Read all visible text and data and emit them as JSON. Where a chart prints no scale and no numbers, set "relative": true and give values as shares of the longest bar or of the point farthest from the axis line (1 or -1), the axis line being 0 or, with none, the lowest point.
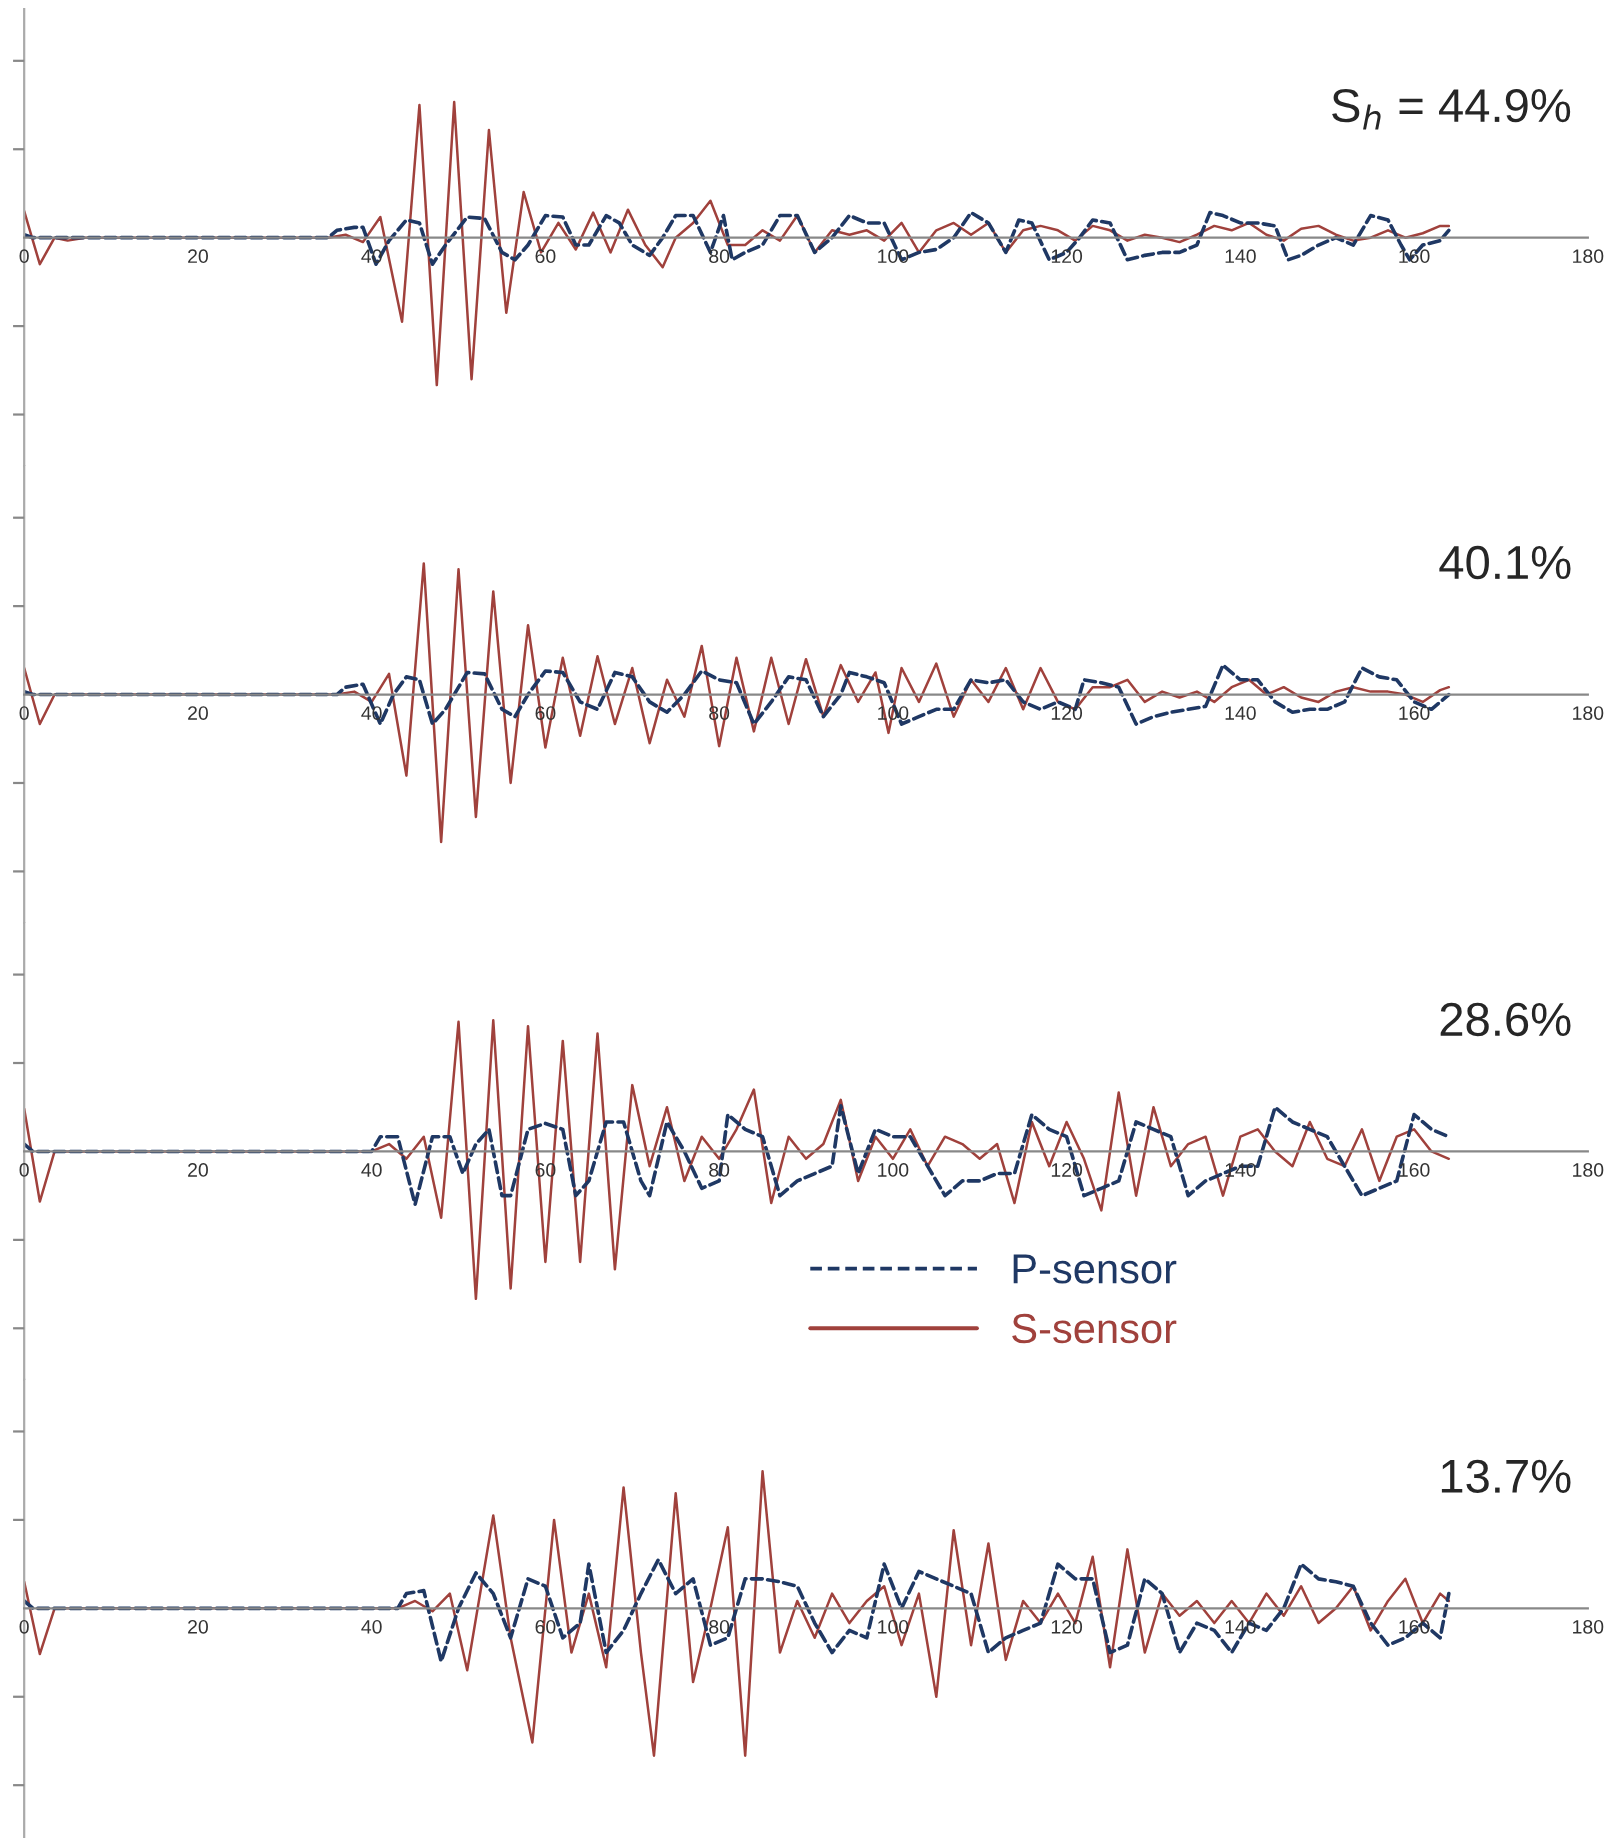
{
  "chart_data": [
    {
      "type": "line",
      "relative": true,
      "xlim": [
        0,
        180
      ],
      "xticks": [
        0,
        20,
        40,
        60,
        80,
        100,
        120,
        140,
        160,
        180
      ],
      "tick_labels": "x",
      "annotations": [
        "S$_{h}$ = 44.9%"
      ],
      "series": [
        {
          "color": "#1f3864",
          "line_style": "dashed",
          "x": [
            0,
            1,
            35,
            36,
            38,
            39,
            40.5,
            42,
            44,
            45.5,
            47,
            48.5,
            51,
            53,
            55,
            56.5,
            58,
            60,
            62,
            63.5,
            65,
            67,
            68.5,
            70,
            72,
            73.5,
            75,
            77,
            79,
            80.5,
            81.5,
            83,
            85,
            87,
            89,
            91,
            93,
            95,
            97,
            99,
            101,
            103,
            105,
            107,
            109,
            111,
            113,
            114.5,
            116,
            118,
            120,
            121.5,
            123,
            125,
            127,
            129,
            131,
            133,
            135,
            136.5,
            138,
            140,
            142,
            144,
            145.5,
            147,
            149,
            151,
            153,
            155,
            157,
            158.5,
            159.5,
            161,
            163,
            164
          ],
          "values": [
            0.02,
            0,
            0,
            0.05,
            0.07,
            0.07,
            -0.18,
            -0.02,
            0.12,
            0.1,
            -0.18,
            -0.05,
            0.14,
            0.13,
            -0.1,
            -0.15,
            -0.05,
            0.15,
            0.14,
            -0.05,
            -0.05,
            0.15,
            0.1,
            -0.05,
            -0.12,
            0,
            0.15,
            0.15,
            -0.1,
            0.15,
            -0.15,
            -0.1,
            -0.05,
            0.15,
            0.15,
            -0.1,
            0,
            0.15,
            0.1,
            0.1,
            -0.15,
            -0.1,
            -0.08,
            0,
            0.17,
            0.1,
            -0.1,
            0.12,
            0.1,
            -0.15,
            -0.1,
            0,
            0.12,
            0.1,
            -0.15,
            -0.12,
            -0.1,
            -0.1,
            -0.05,
            0.17,
            0.15,
            0.1,
            0.1,
            0.08,
            -0.15,
            -0.12,
            -0.05,
            0,
            -0.05,
            0.15,
            0.12,
            -0.05,
            -0.15,
            -0.05,
            -0.02,
            0.05
          ]
        },
        {
          "color": "#a0413c",
          "line_style": "solid",
          "x": [
            0,
            1.8,
            3.5,
            5,
            7,
            35,
            37,
            39,
            41,
            43.5,
            45.5,
            47.5,
            49.5,
            51.5,
            53.5,
            55.5,
            57.5,
            59.5,
            61.5,
            63.5,
            65.5,
            67.5,
            69.5,
            71.5,
            73.5,
            75,
            77,
            79,
            81,
            83,
            85,
            87,
            89,
            91,
            93,
            95,
            97,
            99,
            101,
            103,
            105,
            107,
            109,
            111,
            113,
            115,
            117,
            119,
            121,
            123,
            125,
            127,
            129,
            131,
            133,
            135,
            137,
            139,
            141,
            143,
            145,
            147,
            149,
            151,
            153,
            155,
            157,
            159,
            161,
            163,
            164
          ],
          "values": [
            0.18,
            -0.18,
            0,
            -0.02,
            0,
            0,
            0.02,
            -0.03,
            0.14,
            -0.57,
            0.9,
            -1,
            0.92,
            -0.96,
            0.73,
            -0.51,
            0.31,
            -0.1,
            0.1,
            -0.08,
            0.17,
            -0.1,
            0.19,
            -0.05,
            -0.2,
            0,
            0.1,
            0.25,
            -0.05,
            -0.05,
            0.05,
            -0.02,
            0.15,
            -0.1,
            0.05,
            0.02,
            0.05,
            -0.02,
            0.1,
            -0.1,
            0.05,
            0.1,
            0.02,
            0.1,
            -0.1,
            0.05,
            0.08,
            0.05,
            -0.02,
            0.08,
            0.05,
            -0.02,
            0.02,
            0,
            -0.03,
            0.02,
            0.08,
            0.05,
            0.1,
            0.02,
            -0.02,
            0.06,
            0.08,
            0.02,
            -0.02,
            0,
            0.05,
            0,
            0.03,
            0.08,
            0.08
          ]
        }
      ]
    },
    {
      "type": "line",
      "relative": true,
      "xlim": [
        0,
        180
      ],
      "xticks": [
        0,
        20,
        40,
        60,
        80,
        100,
        120,
        140,
        160,
        180
      ],
      "tick_labels": "x",
      "annotations": [
        "40.1%"
      ],
      "series": [
        {
          "color": "#1f3864",
          "line_style": "dashed",
          "x": [
            0,
            1,
            36,
            37,
            39,
            41,
            42.5,
            44,
            45.5,
            47,
            48.5,
            51,
            53,
            55,
            56.5,
            58,
            60,
            62,
            64,
            66,
            68,
            70,
            72,
            74,
            76,
            78,
            80,
            82,
            84,
            86,
            88,
            90,
            92,
            94,
            95,
            97,
            99,
            101,
            103,
            105,
            107,
            109,
            111,
            113,
            115,
            117,
            119,
            121,
            122,
            124,
            126,
            128,
            130,
            132,
            134,
            136,
            138,
            140,
            142,
            144,
            146,
            148,
            150,
            152,
            154,
            156,
            158,
            160,
            162,
            164
          ],
          "values": [
            0.02,
            0,
            0,
            0.05,
            0.07,
            -0.2,
            0,
            0.12,
            0.1,
            -0.2,
            -0.1,
            0.15,
            0.14,
            -0.1,
            -0.15,
            0,
            0.16,
            0.15,
            -0.05,
            -0.1,
            0.15,
            0.12,
            -0.05,
            -0.12,
            0,
            0.16,
            0.1,
            0.08,
            -0.2,
            -0.05,
            0.12,
            0.1,
            -0.15,
            0,
            0.15,
            0.12,
            0.08,
            -0.2,
            -0.15,
            -0.1,
            -0.1,
            0.1,
            0.08,
            0.1,
            -0.05,
            -0.1,
            -0.05,
            -0.1,
            0.1,
            0.08,
            0.05,
            -0.2,
            -0.15,
            -0.12,
            -0.1,
            -0.08,
            0.2,
            0.1,
            0.1,
            -0.05,
            -0.12,
            -0.1,
            -0.1,
            -0.05,
            0.18,
            0.12,
            0.1,
            -0.05,
            -0.1,
            0
          ]
        },
        {
          "color": "#a0413c",
          "line_style": "solid",
          "x": [
            0,
            1.8,
            3.5,
            36,
            38,
            40,
            42,
            44,
            46,
            48,
            50,
            52,
            54,
            56,
            58,
            60,
            62,
            64,
            66,
            68,
            70,
            72,
            74,
            76,
            78,
            80,
            82,
            84,
            86,
            88,
            90,
            92,
            94,
            96,
            98,
            99.5,
            101,
            103,
            105,
            107,
            109,
            111,
            113,
            115,
            117,
            119,
            121,
            123,
            125,
            127,
            129,
            131,
            133,
            135,
            137,
            139,
            141,
            143,
            145,
            147,
            149,
            151,
            153,
            155,
            157,
            159,
            161,
            163,
            164
          ],
          "values": [
            0.18,
            -0.2,
            0,
            0,
            0.02,
            -0.05,
            0.14,
            -0.55,
            0.89,
            -1,
            0.85,
            -0.83,
            0.7,
            -0.6,
            0.47,
            -0.36,
            0.25,
            -0.28,
            0.26,
            -0.2,
            0.18,
            -0.33,
            0.1,
            -0.15,
            0.33,
            -0.35,
            0.25,
            -0.25,
            0.25,
            -0.2,
            0.24,
            -0.15,
            0.2,
            -0.05,
            0.15,
            -0.26,
            0.18,
            -0.05,
            0.21,
            -0.15,
            0.1,
            -0.05,
            0.18,
            -0.1,
            0.18,
            -0.05,
            -0.1,
            0.05,
            0.05,
            0.1,
            -0.05,
            0.02,
            -0.02,
            0.02,
            -0.05,
            0.05,
            0.1,
            0,
            0.05,
            -0.02,
            -0.05,
            0.02,
            0.05,
            0.02,
            0.02,
            0,
            -0.05,
            0.03,
            0.05
          ]
        }
      ]
    },
    {
      "type": "line",
      "relative": true,
      "xlim": [
        0,
        180
      ],
      "xticks": [
        0,
        20,
        40,
        60,
        80,
        100,
        120,
        140,
        160,
        180
      ],
      "tick_labels": "x",
      "legend": "bottom",
      "annotations": [
        "28.6%"
      ],
      "series": [
        {
          "name": "P-sensor",
          "color": "#1f3864",
          "line_style": "dashed",
          "x": [
            0,
            1,
            40,
            41,
            43,
            45,
            47,
            49,
            50.5,
            52,
            53.5,
            55,
            56,
            58,
            60,
            62,
            63.5,
            65,
            67,
            69,
            71,
            72,
            74,
            76,
            78,
            80,
            81,
            83,
            85,
            87,
            89,
            91,
            93,
            94,
            96,
            98,
            100,
            102,
            104,
            106,
            108,
            110,
            112,
            114,
            116,
            118,
            120,
            122,
            124,
            126,
            128,
            130,
            132,
            134,
            136,
            138,
            140,
            142,
            144,
            146,
            148,
            150,
            152,
            154,
            156,
            158,
            160,
            162,
            164
          ],
          "values": [
            0.05,
            0,
            0,
            0.1,
            0.1,
            -0.36,
            0.1,
            0.1,
            -0.15,
            0.05,
            0.15,
            -0.3,
            -0.3,
            0.15,
            0.19,
            0.15,
            -0.3,
            -0.2,
            0.2,
            0.2,
            -0.2,
            -0.3,
            0.2,
            0,
            -0.25,
            -0.2,
            0.25,
            0.15,
            0.1,
            -0.3,
            -0.2,
            -0.15,
            -0.1,
            0.31,
            -0.15,
            0.15,
            0.1,
            0.1,
            -0.1,
            -0.3,
            -0.2,
            -0.2,
            -0.15,
            -0.15,
            0.25,
            0.15,
            0.1,
            -0.3,
            -0.25,
            -0.2,
            0.2,
            0.15,
            0.1,
            -0.3,
            -0.2,
            -0.15,
            -0.1,
            -0.1,
            0.3,
            0.2,
            0.15,
            0.1,
            -0.1,
            -0.3,
            -0.25,
            -0.2,
            0.25,
            0.15,
            0.1
          ]
        },
        {
          "name": "S-sensor",
          "color": "#a0413c",
          "line_style": "solid",
          "x": [
            0,
            1.8,
            3.5,
            40,
            42,
            44,
            46,
            48,
            50,
            52,
            54,
            56,
            58,
            60,
            62,
            64,
            66,
            68,
            70,
            72,
            74,
            76,
            78,
            80,
            82,
            84,
            86,
            88,
            90,
            92,
            94,
            96,
            98,
            100,
            102,
            104,
            106,
            108,
            110,
            112,
            114,
            116,
            118,
            120,
            122,
            124,
            126,
            128,
            130,
            132,
            134,
            136,
            138,
            140,
            142,
            144,
            146,
            148,
            150,
            152,
            154,
            156,
            158,
            160,
            162,
            164
          ],
          "values": [
            0.29,
            -0.34,
            0,
            0,
            0.05,
            -0.05,
            0.1,
            -0.45,
            0.88,
            -1,
            0.89,
            -0.93,
            0.85,
            -0.75,
            0.75,
            -0.75,
            0.8,
            -0.8,
            0.45,
            -0.1,
            0.3,
            -0.2,
            0.1,
            -0.05,
            0.15,
            0.42,
            -0.35,
            0.1,
            -0.05,
            0.05,
            0.35,
            -0.2,
            0.1,
            -0.05,
            0.15,
            -0.1,
            0.1,
            0.05,
            -0.05,
            0.05,
            -0.35,
            0.2,
            -0.1,
            0.2,
            -0.05,
            -0.4,
            0.4,
            -0.3,
            0.3,
            -0.1,
            0.05,
            0.1,
            -0.3,
            0.1,
            0.15,
            0,
            -0.1,
            0.2,
            -0.05,
            -0.1,
            0.15,
            -0.2,
            0.1,
            0.15,
            0,
            -0.05
          ]
        }
      ]
    },
    {
      "type": "line",
      "relative": true,
      "xlim": [
        0,
        180
      ],
      "xticks": [
        0,
        20,
        40,
        60,
        80,
        100,
        120,
        140,
        160,
        180
      ],
      "tick_labels": "x",
      "annotations": [
        "13.7%"
      ],
      "series": [
        {
          "color": "#1f3864",
          "line_style": "dashed",
          "x": [
            0,
            1,
            43,
            44,
            46,
            48,
            50,
            52,
            54,
            56,
            58,
            60,
            62,
            64,
            65,
            67,
            69,
            71,
            73,
            75,
            77,
            79,
            81,
            83,
            85,
            87,
            89,
            91,
            93,
            95,
            97,
            99,
            101,
            103,
            105,
            107,
            109,
            111,
            113,
            115,
            117,
            119,
            121,
            123,
            125,
            127,
            129,
            131,
            133,
            135,
            137,
            139,
            141,
            143,
            145,
            147,
            149,
            151,
            153,
            155,
            157,
            159,
            161,
            163,
            164
          ],
          "values": [
            0.05,
            0,
            0,
            0.1,
            0.12,
            -0.36,
            0,
            0.24,
            0.1,
            -0.2,
            0.2,
            0.15,
            -0.2,
            -0.1,
            0.3,
            -0.3,
            -0.15,
            0.1,
            0.33,
            0.1,
            0.2,
            -0.25,
            -0.2,
            0.2,
            0.2,
            0.18,
            0.15,
            -0.1,
            -0.3,
            -0.15,
            -0.2,
            0.3,
            0,
            0.25,
            0.2,
            0.15,
            0.1,
            -0.3,
            -0.2,
            -0.15,
            -0.1,
            0.3,
            0.2,
            0.2,
            -0.3,
            -0.25,
            0.2,
            0.1,
            -0.3,
            -0.1,
            -0.15,
            -0.3,
            -0.1,
            -0.15,
            0,
            0.3,
            0.2,
            0.18,
            0.15,
            -0.1,
            -0.25,
            -0.2,
            -0.1,
            -0.2,
            0.1
          ]
        },
        {
          "color": "#a0413c",
          "line_style": "solid",
          "x": [
            0,
            1.8,
            3.5,
            43,
            45,
            47,
            49,
            51,
            54,
            56,
            58.5,
            61,
            63,
            65,
            67,
            69,
            71,
            72.5,
            75,
            77,
            79,
            81,
            83,
            85,
            87,
            89,
            91,
            93,
            95,
            97,
            99,
            101,
            103,
            105,
            107,
            109,
            111,
            113,
            115,
            117,
            119,
            121,
            123,
            125,
            127,
            129,
            131,
            133,
            135,
            137,
            139,
            141,
            143,
            145,
            147,
            149,
            151,
            153,
            155,
            157,
            159,
            161,
            163,
            164
          ],
          "values": [
            0.18,
            -0.31,
            0,
            0,
            0.05,
            -0.02,
            0.1,
            -0.42,
            0.63,
            -0.2,
            -0.91,
            0.6,
            -0.3,
            0.1,
            -0.4,
            0.82,
            -0.3,
            -1,
            0.78,
            -0.5,
            0,
            0.55,
            -1,
            0.93,
            -0.3,
            0.05,
            -0.2,
            0.1,
            -0.1,
            0.05,
            0.15,
            -0.25,
            0.1,
            -0.6,
            0.53,
            -0.25,
            0.44,
            -0.35,
            0.05,
            -0.1,
            0.1,
            -0.1,
            0.35,
            -0.4,
            0.4,
            -0.3,
            0.1,
            -0.05,
            0.05,
            -0.1,
            0.05,
            -0.1,
            0.1,
            -0.05,
            0.15,
            -0.1,
            0,
            0.15,
            -0.15,
            0.05,
            0.2,
            -0.1,
            0.1,
            0.05
          ]
        }
      ]
    }
  ]
}
